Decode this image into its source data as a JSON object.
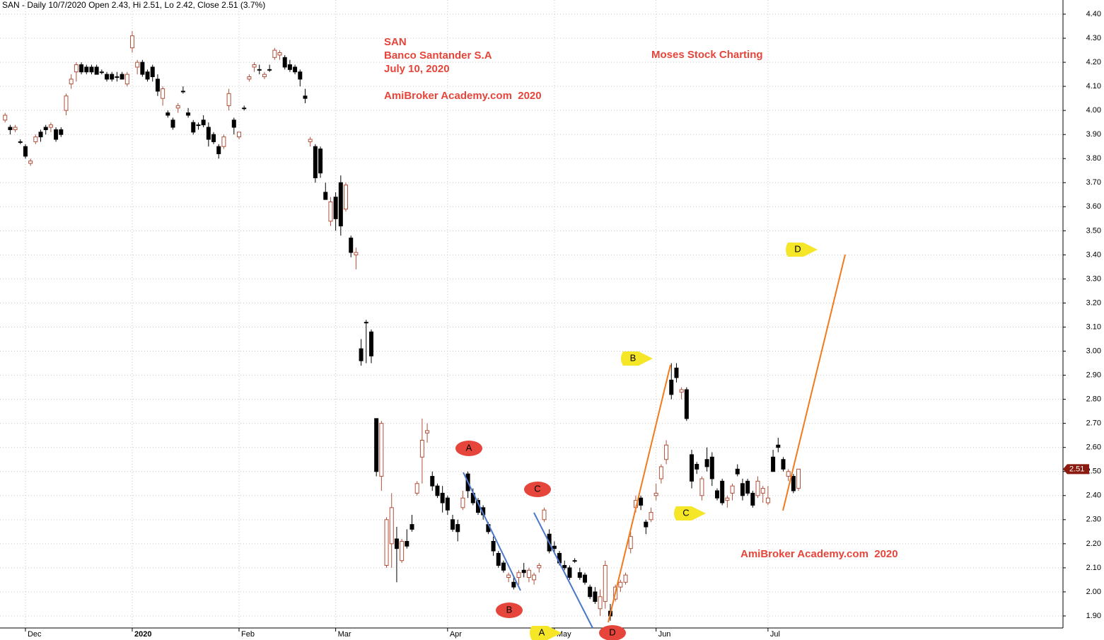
{
  "chart_data": {
    "type": "candlestick",
    "title": "SAN - Daily 10/7/2020 Open 2.43, Hi 2.51, Lo 2.42, Close 2.51 (3.7%)",
    "annotations": [
      "SAN",
      "Banco Santander S.A",
      "July 10, 2020",
      "AmiBroker Academy.com  2020",
      "Moses Stock Charting",
      "AmiBroker Academy.com  2020"
    ],
    "completed_pattern": [
      "A",
      "B",
      "C",
      "D"
    ],
    "projected_pattern": [
      "A",
      "B",
      "C",
      "D"
    ],
    "open": [
      3.96,
      3.93,
      3.92,
      3.87,
      3.85,
      3.78,
      3.87,
      3.91,
      3.93,
      3.93,
      3.92,
      3.92,
      4.0,
      4.11,
      4.16,
      4.19,
      4.18,
      4.18,
      4.18,
      4.16,
      4.15,
      4.15,
      4.14,
      4.15,
      4.11,
      4.26,
      4.18,
      4.2,
      4.16,
      4.18,
      4.13,
      4.05,
      3.99,
      3.96,
      4.01,
      4.08,
      3.99,
      3.95,
      3.94,
      3.96,
      3.93,
      3.9,
      3.85,
      3.85,
      4.02,
      3.96,
      3.89,
      4.01,
      4.13,
      4.18,
      4.17,
      4.14,
      4.17,
      4.22,
      4.23,
      4.22,
      4.19,
      4.18,
      4.16,
      4.06,
      3.87,
      3.85,
      3.84,
      3.66,
      3.54,
      3.64,
      3.7,
      3.59,
      3.47,
      3.4,
      3.01,
      3.12,
      3.08,
      2.72,
      2.48,
      2.11,
      2.2,
      2.22,
      2.13,
      2.21,
      2.28,
      2.41,
      2.56,
      2.66,
      2.48,
      2.44,
      2.41,
      2.39,
      2.3,
      2.28,
      2.35,
      2.49,
      2.41,
      2.38,
      2.35,
      2.28,
      2.21,
      2.16,
      2.12,
      2.06,
      2.04,
      2.06,
      2.09,
      2.06,
      2.05,
      2.1,
      2.3,
      2.24,
      2.19,
      2.16,
      2.11,
      2.1,
      2.13,
      2.08,
      2.07,
      2.02,
      2.0,
      1.93,
      1.96,
      1.92,
      1.97,
      2.02,
      2.04,
      2.18,
      2.35,
      2.39,
      2.29,
      2.3,
      2.4,
      2.47,
      2.55,
      2.88,
      2.93,
      2.83,
      2.84,
      2.57,
      2.53,
      2.4,
      2.55,
      2.56,
      2.42,
      2.46,
      2.38,
      2.41,
      2.51,
      2.45,
      2.46,
      2.41,
      2.4,
      2.41,
      2.37,
      2.56,
      2.61,
      2.55,
      2.48,
      2.48,
      2.43
    ],
    "high": [
      3.99,
      3.94,
      3.94,
      3.88,
      3.86,
      3.8,
      3.9,
      3.92,
      3.94,
      3.95,
      3.93,
      3.93,
      4.07,
      4.15,
      4.2,
      4.2,
      4.19,
      4.19,
      4.19,
      4.17,
      4.16,
      4.16,
      4.16,
      4.16,
      4.16,
      4.33,
      4.21,
      4.21,
      4.17,
      4.19,
      4.15,
      4.1,
      4.0,
      3.97,
      4.03,
      4.1,
      4.01,
      3.96,
      3.95,
      3.98,
      3.95,
      3.91,
      3.86,
      3.9,
      4.09,
      3.97,
      3.91,
      4.02,
      4.15,
      4.2,
      4.19,
      4.16,
      4.19,
      4.26,
      4.25,
      4.23,
      4.21,
      4.19,
      4.17,
      4.09,
      3.89,
      3.86,
      3.85,
      3.7,
      3.64,
      3.66,
      3.73,
      3.7,
      3.48,
      3.43,
      3.05,
      3.13,
      3.09,
      2.72,
      2.71,
      2.31,
      2.41,
      2.27,
      2.22,
      2.26,
      2.32,
      2.46,
      2.72,
      2.7,
      2.5,
      2.45,
      2.44,
      2.4,
      2.32,
      2.3,
      2.42,
      2.5,
      2.43,
      2.39,
      2.36,
      2.29,
      2.23,
      2.17,
      2.13,
      2.08,
      2.06,
      2.09,
      2.12,
      2.1,
      2.08,
      2.12,
      2.35,
      2.26,
      2.21,
      2.17,
      2.13,
      2.11,
      2.14,
      2.1,
      2.08,
      2.03,
      2.02,
      2.01,
      2.13,
      1.95,
      2.03,
      2.05,
      2.08,
      2.25,
      2.4,
      2.4,
      2.3,
      2.35,
      2.45,
      2.53,
      2.63,
      2.95,
      2.95,
      2.85,
      2.85,
      2.59,
      2.54,
      2.48,
      2.6,
      2.58,
      2.43,
      2.47,
      2.4,
      2.45,
      2.53,
      2.47,
      2.47,
      2.42,
      2.48,
      2.44,
      2.44,
      2.59,
      2.64,
      2.56,
      2.51,
      2.49,
      2.51
    ],
    "low": [
      3.95,
      3.9,
      3.91,
      3.86,
      3.8,
      3.77,
      3.86,
      3.87,
      3.9,
      3.91,
      3.87,
      3.89,
      3.98,
      4.09,
      4.12,
      4.15,
      4.15,
      4.15,
      4.15,
      4.15,
      4.12,
      4.12,
      4.12,
      4.13,
      4.1,
      4.24,
      4.15,
      4.14,
      4.12,
      4.12,
      4.06,
      4.02,
      3.97,
      3.92,
      3.99,
      4.07,
      3.97,
      3.9,
      3.92,
      3.93,
      3.85,
      3.86,
      3.8,
      3.84,
      4.0,
      3.9,
      3.88,
      4.0,
      4.12,
      4.16,
      4.15,
      4.13,
      4.16,
      4.21,
      4.21,
      4.17,
      4.16,
      4.15,
      4.1,
      4.03,
      3.85,
      3.7,
      3.72,
      3.63,
      3.52,
      3.5,
      3.48,
      3.58,
      3.39,
      3.34,
      2.94,
      2.95,
      2.95,
      2.48,
      2.42,
      2.1,
      2.1,
      2.04,
      2.12,
      2.18,
      2.25,
      2.4,
      2.45,
      2.62,
      2.42,
      2.39,
      2.33,
      2.32,
      2.25,
      2.21,
      2.34,
      2.39,
      2.36,
      2.32,
      2.3,
      2.24,
      2.15,
      2.1,
      2.08,
      2.04,
      2.01,
      2.03,
      2.06,
      2.04,
      2.03,
      2.08,
      2.29,
      2.16,
      2.16,
      2.11,
      2.09,
      2.05,
      2.12,
      2.05,
      2.03,
      1.97,
      1.95,
      1.9,
      1.93,
      1.88,
      1.96,
      2.0,
      2.03,
      2.16,
      2.33,
      2.34,
      2.24,
      2.29,
      2.38,
      2.45,
      2.53,
      2.8,
      2.87,
      2.8,
      2.71,
      2.43,
      2.49,
      2.38,
      2.5,
      2.44,
      2.38,
      2.36,
      2.35,
      2.38,
      2.48,
      2.38,
      2.4,
      2.35,
      2.39,
      2.37,
      2.36,
      2.5,
      2.58,
      2.5,
      2.46,
      2.41,
      2.42
    ],
    "close": [
      3.98,
      3.92,
      3.93,
      3.87,
      3.81,
      3.79,
      3.89,
      3.89,
      3.92,
      3.94,
      3.88,
      3.9,
      4.06,
      4.13,
      4.19,
      4.16,
      4.16,
      4.16,
      4.15,
      4.16,
      4.13,
      4.13,
      4.14,
      4.13,
      4.15,
      4.31,
      4.2,
      4.15,
      4.13,
      4.14,
      4.08,
      4.09,
      3.98,
      3.93,
      4.02,
      4.08,
      3.98,
      3.91,
      3.94,
      3.94,
      3.88,
      3.87,
      3.82,
      3.89,
      4.07,
      3.93,
      3.91,
      4.01,
      4.14,
      4.19,
      4.17,
      4.15,
      4.17,
      4.25,
      4.24,
      4.18,
      4.17,
      4.16,
      4.13,
      4.05,
      3.88,
      3.72,
      3.74,
      3.63,
      3.62,
      3.55,
      3.52,
      3.69,
      3.41,
      3.41,
      2.96,
      3.12,
      2.98,
      2.5,
      2.7,
      2.3,
      2.35,
      2.18,
      2.21,
      2.19,
      2.26,
      2.45,
      2.63,
      2.67,
      2.44,
      2.4,
      2.37,
      2.34,
      2.26,
      2.25,
      2.39,
      2.42,
      2.37,
      2.33,
      2.32,
      2.25,
      2.17,
      2.11,
      2.09,
      2.07,
      2.02,
      2.08,
      2.08,
      2.09,
      2.07,
      2.11,
      2.34,
      2.17,
      2.18,
      2.12,
      2.1,
      2.06,
      2.13,
      2.06,
      2.04,
      1.98,
      1.96,
      1.98,
      2.11,
      1.9,
      2.02,
      2.04,
      2.07,
      2.23,
      2.38,
      2.36,
      2.27,
      2.33,
      2.41,
      2.52,
      2.61,
      2.82,
      2.89,
      2.84,
      2.72,
      2.46,
      2.51,
      2.47,
      2.52,
      2.47,
      2.39,
      2.37,
      2.39,
      2.44,
      2.49,
      2.4,
      2.41,
      2.36,
      2.46,
      2.43,
      2.39,
      2.5,
      2.6,
      2.51,
      2.5,
      2.42,
      2.51
    ],
    "up_color": "#b0503a",
    "down_color": "#000000",
    "xlim": [
      -1,
      208
    ],
    "xticks": [
      {
        "value": 4,
        "label": "Dec"
      },
      {
        "value": 25,
        "label": "2020"
      },
      {
        "value": 46,
        "label": "Feb"
      },
      {
        "value": 65,
        "label": "Mar"
      },
      {
        "value": 87,
        "label": "Apr"
      },
      {
        "value": 108,
        "label": "May"
      },
      {
        "value": 128,
        "label": "Jun"
      },
      {
        "value": 150,
        "label": "Jul"
      }
    ],
    "ylim": [
      1.85,
      4.45
    ],
    "yticks": [
      {
        "value": 1.9,
        "label": "1.90"
      },
      {
        "value": 2.0,
        "label": "2.00"
      },
      {
        "value": 2.1,
        "label": "2.10"
      },
      {
        "value": 2.2,
        "label": "2.20"
      },
      {
        "value": 2.3,
        "label": "2.30"
      },
      {
        "value": 2.4,
        "label": "2.40"
      },
      {
        "value": 2.5,
        "label": "2.50"
      },
      {
        "value": 2.6,
        "label": "2.60"
      },
      {
        "value": 2.7,
        "label": "2.70"
      },
      {
        "value": 2.8,
        "label": "2.80"
      },
      {
        "value": 2.9,
        "label": "2.90"
      },
      {
        "value": 3.0,
        "label": "3.00"
      },
      {
        "value": 3.1,
        "label": "3.10"
      },
      {
        "value": 3.2,
        "label": "3.20"
      },
      {
        "value": 3.3,
        "label": "3.30"
      },
      {
        "value": 3.4,
        "label": "3.40"
      },
      {
        "value": 3.5,
        "label": "3.50"
      },
      {
        "value": 3.6,
        "label": "3.60"
      },
      {
        "value": 3.7,
        "label": "3.70"
      },
      {
        "value": 3.8,
        "label": "3.80"
      },
      {
        "value": 3.9,
        "label": "3.90"
      },
      {
        "value": 4.0,
        "label": "4.00"
      },
      {
        "value": 4.1,
        "label": "4.10"
      },
      {
        "value": 4.2,
        "label": "4.20"
      },
      {
        "value": 4.3,
        "label": "4.30"
      },
      {
        "value": 4.4,
        "label": "4.40"
      }
    ],
    "grid": true
  }
}
